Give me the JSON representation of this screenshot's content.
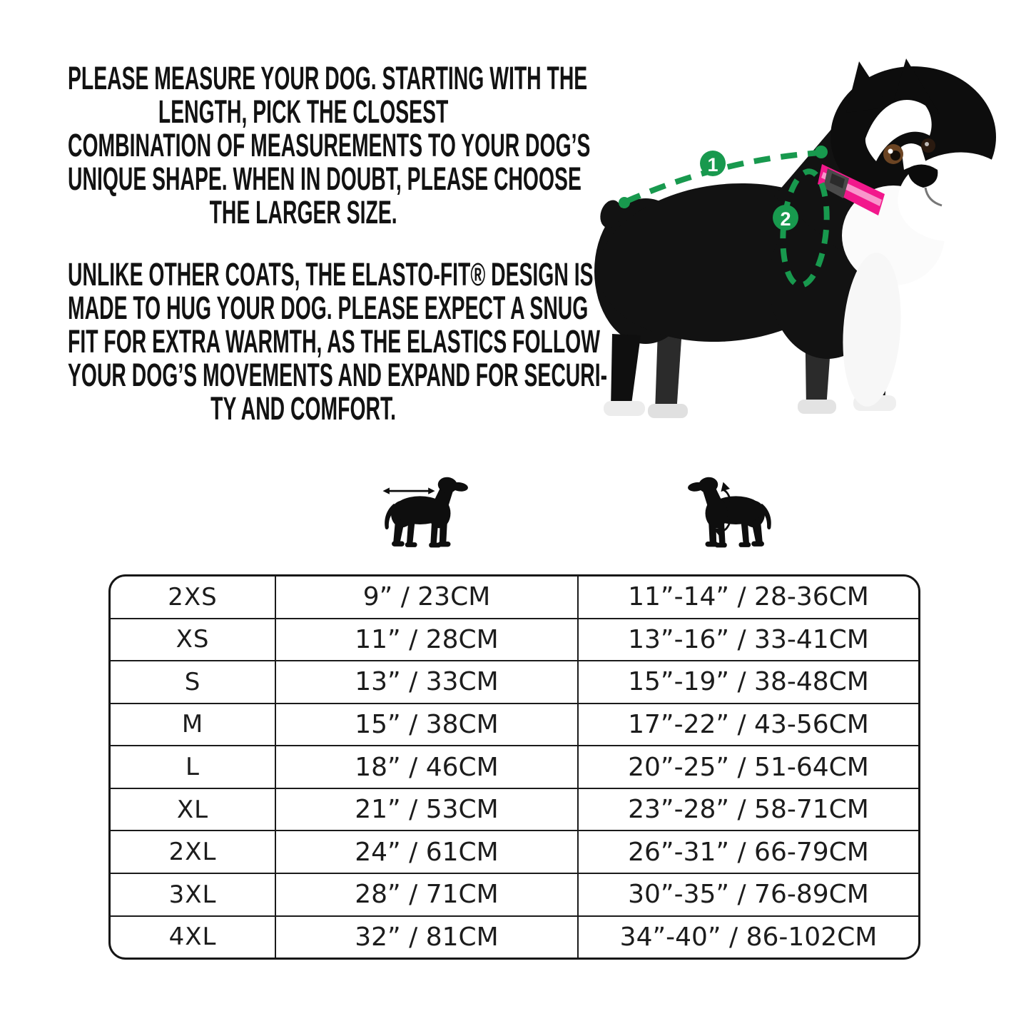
{
  "page": {
    "background": "#ffffff",
    "text_color": "#121212"
  },
  "instructions": {
    "paragraph1_lines": [
      "PLEASE MEASURE YOUR DOG. STARTING WITH THE",
      "LENGTH, PICK THE CLOSEST",
      "COMBINATION OF MEASUREMENTS TO YOUR DOG’S",
      "UNIQUE SHAPE. WHEN IN DOUBT, PLEASE CHOOSE",
      "THE LARGER SIZE."
    ],
    "paragraph2_lines": [
      "UNLIKE OTHER COATS, THE ELASTO-FIT® DESIGN IS",
      "MADE TO HUG YOUR DOG. PLEASE EXPECT A SNUG",
      "FIT FOR EXTRA WARMTH, AS THE ELASTICS FOLLOW",
      "YOUR DOG’S MOVEMENTS AND EXPAND FOR SECURI-",
      "TY AND COMFORT."
    ]
  },
  "measurement_diagram": {
    "marker1_label": "1",
    "marker2_label": "2",
    "accent_green": "#18994E",
    "collar_pink": "#F2188C",
    "dog_black": "#111111"
  },
  "legend": {
    "length_icon": "dog-length-silhouette",
    "girth_icon": "dog-girth-silhouette"
  },
  "size_table": {
    "columns": [
      "size",
      "length",
      "girth"
    ],
    "rows": [
      {
        "size": "2XS",
        "length": "9” / 23CM",
        "girth": "11”-14” / 28-36CM"
      },
      {
        "size": "XS",
        "length": "11” / 28CM",
        "girth": "13”-16” / 33-41CM"
      },
      {
        "size": "S",
        "length": "13” / 33CM",
        "girth": "15”-19” / 38-48CM"
      },
      {
        "size": "M",
        "length": "15” / 38CM",
        "girth": "17”-22” / 43-56CM"
      },
      {
        "size": "L",
        "length": "18” / 46CM",
        "girth": "20”-25” / 51-64CM"
      },
      {
        "size": "XL",
        "length": "21” / 53CM",
        "girth": "23”-28” / 58-71CM"
      },
      {
        "size": "2XL",
        "length": "24” / 61CM",
        "girth": "26”-31” / 66-79CM"
      },
      {
        "size": "3XL",
        "length": "28” / 71CM",
        "girth": "30”-35” / 76-89CM"
      },
      {
        "size": "4XL",
        "length": "32” / 81CM",
        "girth": "34”-40” / 86-102CM"
      }
    ]
  }
}
